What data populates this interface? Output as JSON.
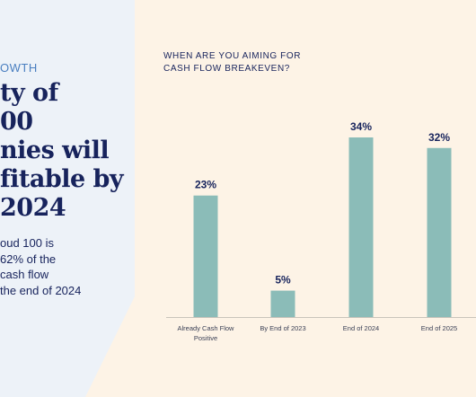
{
  "left": {
    "eyebrow": "OWTH",
    "headline_lines": [
      "ty of",
      "00",
      "nies will",
      "fitable by",
      "2024"
    ],
    "body_lines": [
      "oud 100 is",
      " 62% of the",
      "cash flow",
      "the end of 2024"
    ]
  },
  "chart_data": {
    "type": "bar",
    "title_lines": [
      "WHEN ARE YOU AIMING FOR",
      "CASH FLOW BREAKEVEN?"
    ],
    "categories": [
      [
        "Already Cash Flow",
        "Positive"
      ],
      [
        "By End of 2023"
      ],
      [
        "End of 2024"
      ],
      [
        "End of 2025"
      ]
    ],
    "values": [
      23,
      5,
      34,
      32
    ],
    "value_labels": [
      "23%",
      "5%",
      "34%",
      "32%"
    ],
    "ylim": [
      0,
      34
    ],
    "bar_color": "#8bbcb8",
    "label_color": "#17235c"
  }
}
